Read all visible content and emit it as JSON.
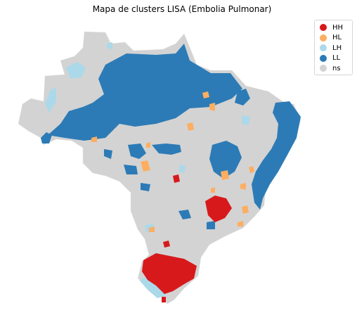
{
  "title": "Mapa de clusters LISA (Embolia Pulmonar)",
  "legend": [
    {
      "label": "HH",
      "color": "#d7191c"
    },
    {
      "label": "HL",
      "color": "#fdae61"
    },
    {
      "label": "LH",
      "color": "#abd9e9"
    },
    {
      "label": "LL",
      "color": "#2c7bb6"
    },
    {
      "label": "ns",
      "color": "#d3d3d3"
    }
  ]
}
